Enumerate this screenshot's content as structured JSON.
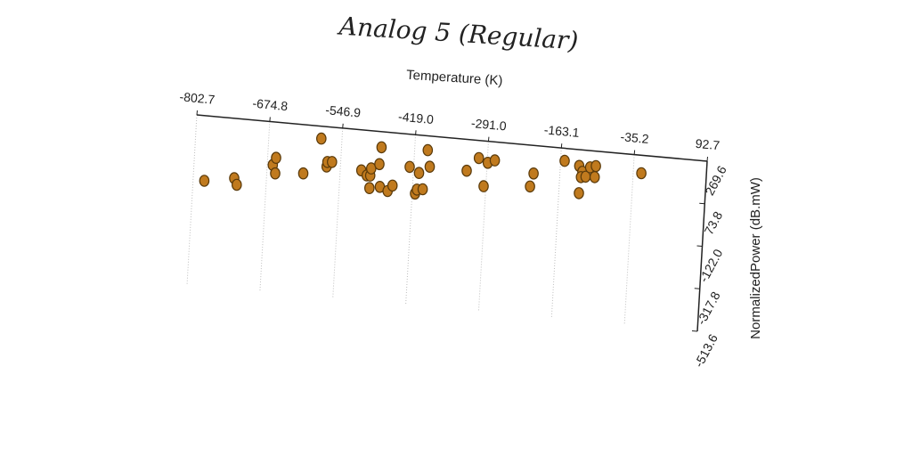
{
  "chart_data": {
    "type": "scatter",
    "title": "Analog 5 (Regular)",
    "xlabel": "Temperature (K)",
    "ylabel": "NormalizedPower (dB.mW)",
    "xlim": [
      -802.7,
      92.7
    ],
    "ylim": [
      -513.6,
      269.6
    ],
    "x_ticks": [
      "-802.7",
      "-674.8",
      "-546.9",
      "-419.0",
      "-291.0",
      "-163.1",
      "-35.2",
      "92.7"
    ],
    "y_ticks": [
      "269.6",
      "73.8",
      "-122.0",
      "-317.8",
      "-513.6"
    ],
    "grid": true,
    "legend": "none",
    "marker_color": "#c07a1e",
    "series": [
      {
        "points": [
          [
            -783,
            -29
          ],
          [
            -731,
            -5
          ],
          [
            -726,
            -34
          ],
          [
            -665,
            72
          ],
          [
            -660,
            106
          ],
          [
            -660,
            34
          ],
          [
            -611,
            46
          ],
          [
            -583,
            213
          ],
          [
            -571,
            87
          ],
          [
            -570,
            108
          ],
          [
            -562,
            110
          ],
          [
            -510,
            84
          ],
          [
            -500,
            63
          ],
          [
            -494,
            64
          ],
          [
            -494,
            6
          ],
          [
            -493,
            97
          ],
          [
            -479,
            120
          ],
          [
            -476,
            16
          ],
          [
            -477,
            198
          ],
          [
            -462,
            0
          ],
          [
            -454,
            27
          ],
          [
            -426,
            120
          ],
          [
            -414,
            0
          ],
          [
            -411,
            19
          ],
          [
            -409,
            96
          ],
          [
            -401,
            23
          ],
          [
            -396,
            204
          ],
          [
            -391,
            129
          ],
          [
            -326,
            126
          ],
          [
            -306,
            189
          ],
          [
            -290,
            171
          ],
          [
            -278,
            185
          ],
          [
            -295,
            62
          ],
          [
            -214,
            80
          ],
          [
            -209,
            141
          ],
          [
            -156,
            212
          ],
          [
            -128,
            70
          ],
          [
            -130,
            195
          ],
          [
            -124,
            169
          ],
          [
            -126,
            144
          ],
          [
            -118,
            148
          ],
          [
            -111,
            193
          ],
          [
            -101,
            201
          ],
          [
            -102,
            150
          ],
          [
            -21,
            187
          ]
        ]
      }
    ]
  }
}
